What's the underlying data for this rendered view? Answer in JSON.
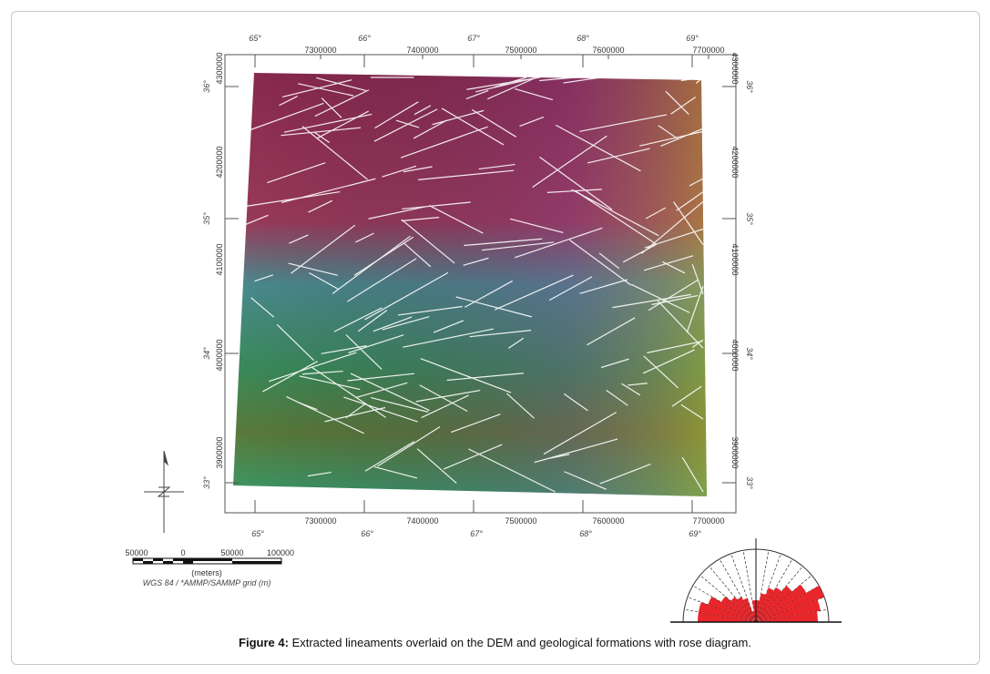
{
  "figure": {
    "caption_label": "Figure 4:",
    "caption_text": " Extracted lineaments overlaid on the DEM and geological formations with rose diagram."
  },
  "map": {
    "top_degrees": [
      "65°",
      "66°",
      "67°",
      "68°",
      "69°"
    ],
    "top_eastings": [
      "7300000",
      "7400000",
      "7500000",
      "7600000",
      "7700000"
    ],
    "bottom_degrees": [
      "65°",
      "66°",
      "67°",
      "68°",
      "69°"
    ],
    "bottom_eastings": [
      "7300000",
      "7400000",
      "7500000",
      "7600000",
      "7700000"
    ],
    "left_degrees": [
      "36°",
      "35°",
      "34°",
      "33°"
    ],
    "left_northings": [
      "4300000",
      "4200000",
      "4100000",
      "4000000",
      "3900000"
    ],
    "right_degrees": [
      "36°",
      "35°",
      "34°",
      "33°"
    ],
    "right_northings": [
      "4300000",
      "4200000",
      "4100000",
      "4000000",
      "3900000"
    ],
    "lineament_color": "#ffffff"
  },
  "scale_bar": {
    "labels": [
      "50000",
      "0",
      "50000",
      "100000"
    ],
    "units": "(meters)",
    "projection": "WGS 84 / *AMMP/SAMMP grid (m)"
  },
  "rose_diagram": {
    "petal_color": "#e8262b",
    "bins_deg_from_west_clockwise": [
      270,
      280,
      290,
      300,
      310,
      320,
      330,
      340,
      350,
      0,
      10,
      20,
      30,
      40,
      50,
      60,
      70,
      80
    ],
    "relative_lengths": [
      0.8,
      0.8,
      0.7,
      0.55,
      0.45,
      0.4,
      0.35,
      0.15,
      0.3,
      0.3,
      0.4,
      0.5,
      0.55,
      0.65,
      0.8,
      1.0,
      0.9,
      0.85
    ]
  }
}
